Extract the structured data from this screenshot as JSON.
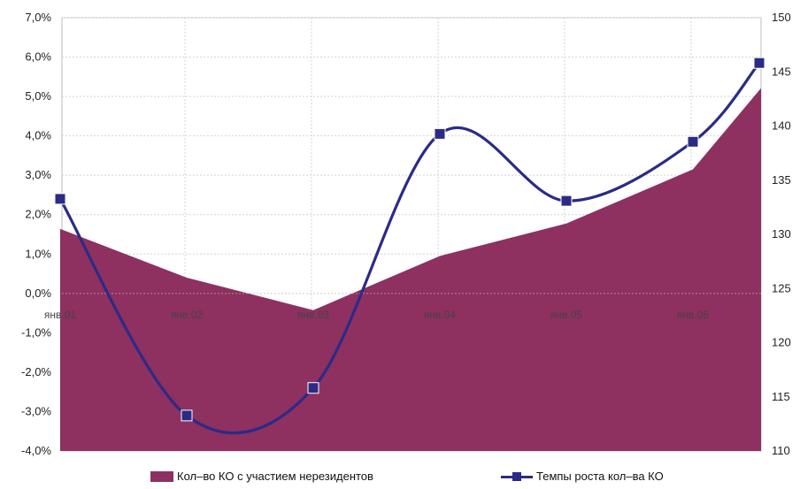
{
  "chart_data": {
    "type": "area+line",
    "categories": [
      "янв.01",
      "янв.02",
      "янв.03",
      "янв.04",
      "янв.05",
      "янв.06"
    ],
    "y_left": {
      "ticks": [
        "7,0%",
        "6,0%",
        "5,0%",
        "4,0%",
        "3,0%",
        "2,0%",
        "1,0%",
        "0,0%",
        "-1,0%",
        "-2,0%",
        "-3,0%",
        "-4,0%"
      ],
      "ylim": [
        -4,
        7
      ]
    },
    "y_right": {
      "ticks": [
        "150",
        "145",
        "140",
        "135",
        "130",
        "125",
        "120",
        "115",
        "110"
      ],
      "ylim": [
        110,
        150
      ]
    },
    "grid": true,
    "legend_position": "bottom",
    "series": [
      {
        "name": "Кол–во КО с участием нерезидентов",
        "kind": "area",
        "axis": "right",
        "color": "#8e3060",
        "x": [
          0,
          1,
          2,
          3,
          4,
          5,
          5.5
        ],
        "values": [
          130.5,
          126.0,
          123.0,
          128.0,
          131.0,
          136.0,
          143.5
        ]
      },
      {
        "name": "Темпы роста кол–ва КО",
        "kind": "line",
        "axis": "left",
        "color": "#2b2b86",
        "x": [
          0,
          1,
          2,
          3,
          4,
          5,
          5.5
        ],
        "values": [
          2.4,
          -3.1,
          -2.4,
          4.05,
          2.35,
          3.85,
          5.85
        ]
      }
    ]
  }
}
